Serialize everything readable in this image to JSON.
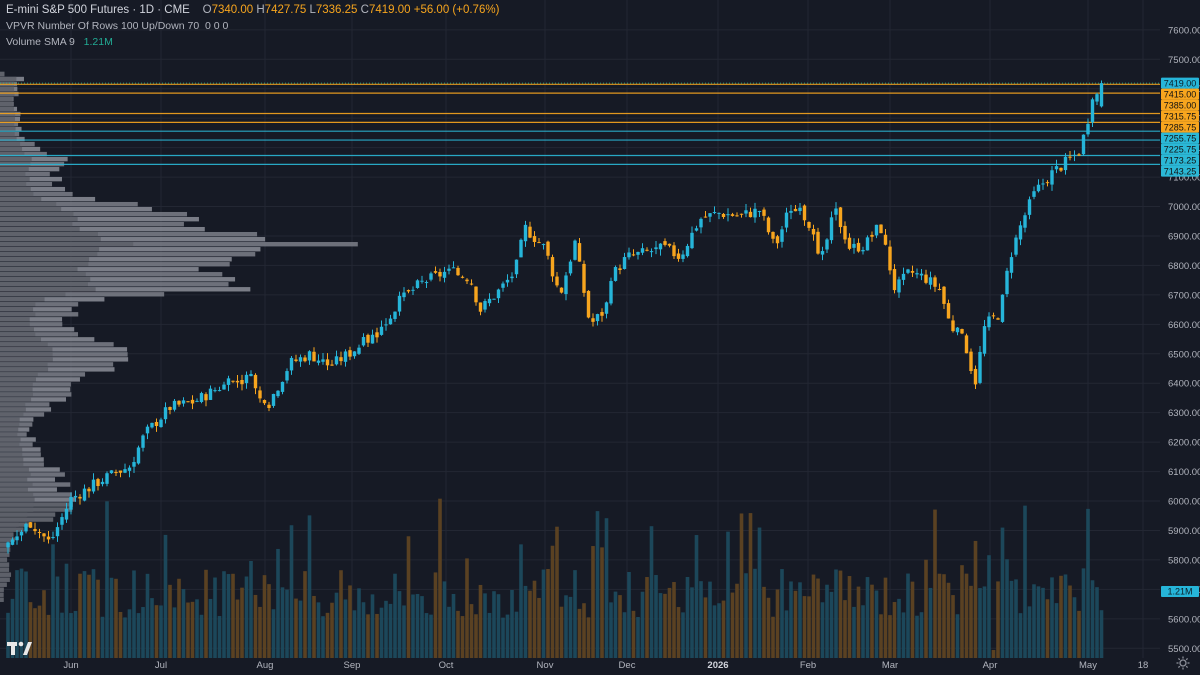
{
  "header": {
    "symbol": "E-mini S&P 500 Futures · 1D · CME",
    "o_label": "O",
    "o_value": "7340.00",
    "h_label": "H",
    "h_value": "7427.75",
    "l_label": "L",
    "l_value": "7336.25",
    "c_label": "C",
    "c_value": "7419.00",
    "change": "+56.00 (+0.76%)"
  },
  "vpvr_legend": {
    "name": "VPVR",
    "params": "Number Of Rows 100 Up/Down 70",
    "values": "0  0  0"
  },
  "volume_legend": {
    "name": "Volume",
    "sma": "SMA 9",
    "value": "1.21M",
    "badge": "1.21M"
  },
  "chart_data": {
    "type": "candlestick",
    "symbol": "E-mini S&P 500 Futures",
    "interval": "1D",
    "exchange": "CME",
    "ylim": [
      5450,
      7650
    ],
    "y_ticks": [
      7600,
      7500,
      7400,
      7300,
      7200,
      7100,
      7000,
      6900,
      6800,
      6700,
      6600,
      6500,
      6400,
      6300,
      6200,
      6100,
      6000,
      5900,
      5800,
      5700,
      5600,
      5500
    ],
    "x_tick_labels": [
      "Jun",
      "Jul",
      "Aug",
      "Sep",
      "Oct",
      "Nov",
      "Dec",
      "2026",
      "Feb",
      "Mar",
      "Apr",
      "May",
      "18"
    ],
    "price_levels": [
      {
        "value": 7419.0,
        "label": "7419.00",
        "kind": "last",
        "color": "#22ab94"
      },
      {
        "value": 7415.0,
        "label": "7415.00",
        "kind": "level",
        "color": "#f7a51e"
      },
      {
        "value": 7385.0,
        "label": "7385.00",
        "kind": "level",
        "color": "#f7a51e"
      },
      {
        "value": 7315.75,
        "label": "7315.75",
        "kind": "level",
        "color": "#f7a51e"
      },
      {
        "value": 7285.75,
        "label": "7285.75",
        "kind": "level",
        "color": "#f7a51e"
      },
      {
        "value": 7255.75,
        "label": "7255.75",
        "kind": "level",
        "color": "#2bb8d6"
      },
      {
        "value": 7225.75,
        "label": "7225.75",
        "kind": "level",
        "color": "#2bb8d6"
      },
      {
        "value": 7173.25,
        "label": "7173.25",
        "kind": "level",
        "color": "#2bb8d6"
      },
      {
        "value": 7143.25,
        "label": "7143.25",
        "kind": "level",
        "color": "#2bb8d6"
      }
    ],
    "colors": {
      "up": "#26b5d9",
      "down": "#f7a51e",
      "background": "#161a25",
      "grid": "#232733",
      "axis_text": "#b2b5be",
      "vpvr": "#8c8f99"
    },
    "close_anchors": [
      {
        "month": "May 2025",
        "close": 5850
      },
      {
        "month": "Jun 2025",
        "close": 6080
      },
      {
        "month": "Jul 2025",
        "close": 6380
      },
      {
        "month": "Aug 2025",
        "close": 6480
      },
      {
        "month": "Sep 2025",
        "close": 6740
      },
      {
        "month": "Oct 2025",
        "close": 6780
      },
      {
        "month": "Oct 2025 late",
        "close": 6920
      },
      {
        "month": "Nov 2025",
        "close": 6620
      },
      {
        "month": "Dec 2025",
        "close": 6890
      },
      {
        "month": "Jan 2026",
        "close": 6990
      },
      {
        "month": "Feb 2026",
        "close": 6880
      },
      {
        "month": "Mar 2026",
        "close": 6500
      },
      {
        "month": "Apr 2026",
        "close": 6600
      },
      {
        "month": "May 2026",
        "close": 7419
      }
    ],
    "grid": true,
    "legend_position": "top-left"
  }
}
